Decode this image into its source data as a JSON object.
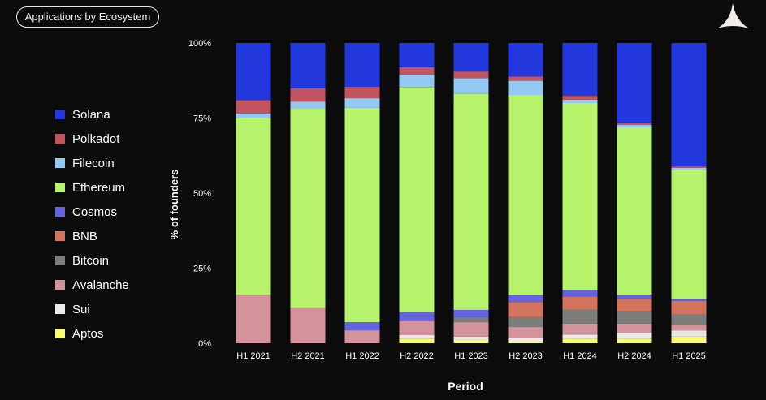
{
  "title": "Applications by Ecosystem",
  "chart_data": {
    "type": "bar",
    "stacked": true,
    "xlabel": "Period",
    "ylabel": "% of founders",
    "ylim": [
      0,
      100
    ],
    "yticks": [
      "0%",
      "25%",
      "50%",
      "75%",
      "100%"
    ],
    "categories": [
      "H1 2021",
      "H2 2021",
      "H1 2022",
      "H2 2022",
      "H1 2023",
      "H2 2023",
      "H1 2024",
      "H2 2024",
      "H1 2025"
    ],
    "legend_position": "left",
    "series": [
      {
        "name": "Aptos",
        "color": "#fbfb70",
        "values": [
          0,
          0,
          0,
          1.4,
          1.1,
          0.5,
          1.4,
          1.4,
          2.2
        ]
      },
      {
        "name": "Sui",
        "color": "#ebebe6",
        "values": [
          0,
          0,
          0,
          1.3,
          1.1,
          1.2,
          1.5,
          2.1,
          2.0
        ]
      },
      {
        "name": "Avalanche",
        "color": "#d4939c",
        "values": [
          16.2,
          11.9,
          4.3,
          4.7,
          4.8,
          3.7,
          3.6,
          3.0,
          2.0
        ]
      },
      {
        "name": "Bitcoin",
        "color": "#7d7d7b",
        "values": [
          0,
          0,
          0,
          0,
          1.7,
          3.3,
          4.7,
          4.3,
          3.3
        ]
      },
      {
        "name": "BNB",
        "color": "#d4735b",
        "values": [
          0,
          0,
          0,
          0,
          0,
          5.0,
          4.4,
          4.0,
          4.6
        ]
      },
      {
        "name": "Cosmos",
        "color": "#6464e0",
        "values": [
          0,
          0,
          2.7,
          3.0,
          2.4,
          2.4,
          2.0,
          1.4,
          0.7
        ]
      },
      {
        "name": "Ethereum",
        "color": "#b6f36a",
        "values": [
          58.9,
          66.2,
          71.4,
          74.8,
          71.9,
          66.6,
          62.4,
          55.7,
          43.0
        ]
      },
      {
        "name": "Filecoin",
        "color": "#93c9f2",
        "values": [
          1.4,
          2.4,
          3.2,
          4.2,
          5.3,
          4.7,
          1.1,
          0.8,
          0.6
        ]
      },
      {
        "name": "Polkadot",
        "color": "#c25560",
        "values": [
          4.5,
          4.4,
          3.8,
          2.5,
          2.2,
          1.4,
          1.3,
          0.8,
          0.5
        ]
      },
      {
        "name": "Solana",
        "color": "#2238dd",
        "values": [
          19.0,
          15.1,
          14.6,
          8.1,
          9.5,
          11.2,
          17.6,
          26.5,
          41.1
        ]
      }
    ],
    "grid": false
  },
  "logo": "triangle-logo"
}
